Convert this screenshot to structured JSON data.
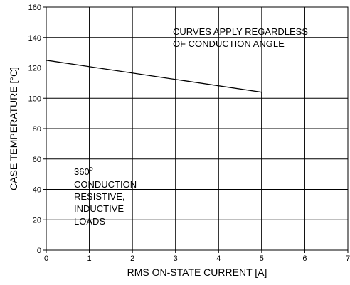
{
  "chart_data": {
    "type": "line",
    "xlabel": "RMS ON-STATE CURRENT [A]",
    "ylabel": "CASE TEMPERATURE [°C]",
    "xlim": [
      0,
      7
    ],
    "ylim": [
      0,
      160
    ],
    "x_ticks": [
      "0",
      "1",
      "2",
      "3",
      "4",
      "5",
      "6",
      "7"
    ],
    "y_ticks": [
      "0",
      "20",
      "40",
      "60",
      "80",
      "100",
      "120",
      "140",
      "160"
    ],
    "grid": true,
    "series": [
      {
        "x": [
          0,
          5,
          5
        ],
        "y": [
          125,
          104,
          0
        ]
      }
    ],
    "annotations": {
      "top_line1": "CURVES APPLY REGARDLESS",
      "top_line2": "OF CONDUCTION ANGLE",
      "left_deg_value": "360",
      "left_deg_symbol": "o",
      "left_line2": "CONDUCTION",
      "left_line3": "RESISTIVE,",
      "left_line4": "INDUCTIVE",
      "left_line5": "LOADS"
    },
    "colors": {
      "line": "#000000",
      "grid": "#000000",
      "background": "#ffffff"
    }
  }
}
